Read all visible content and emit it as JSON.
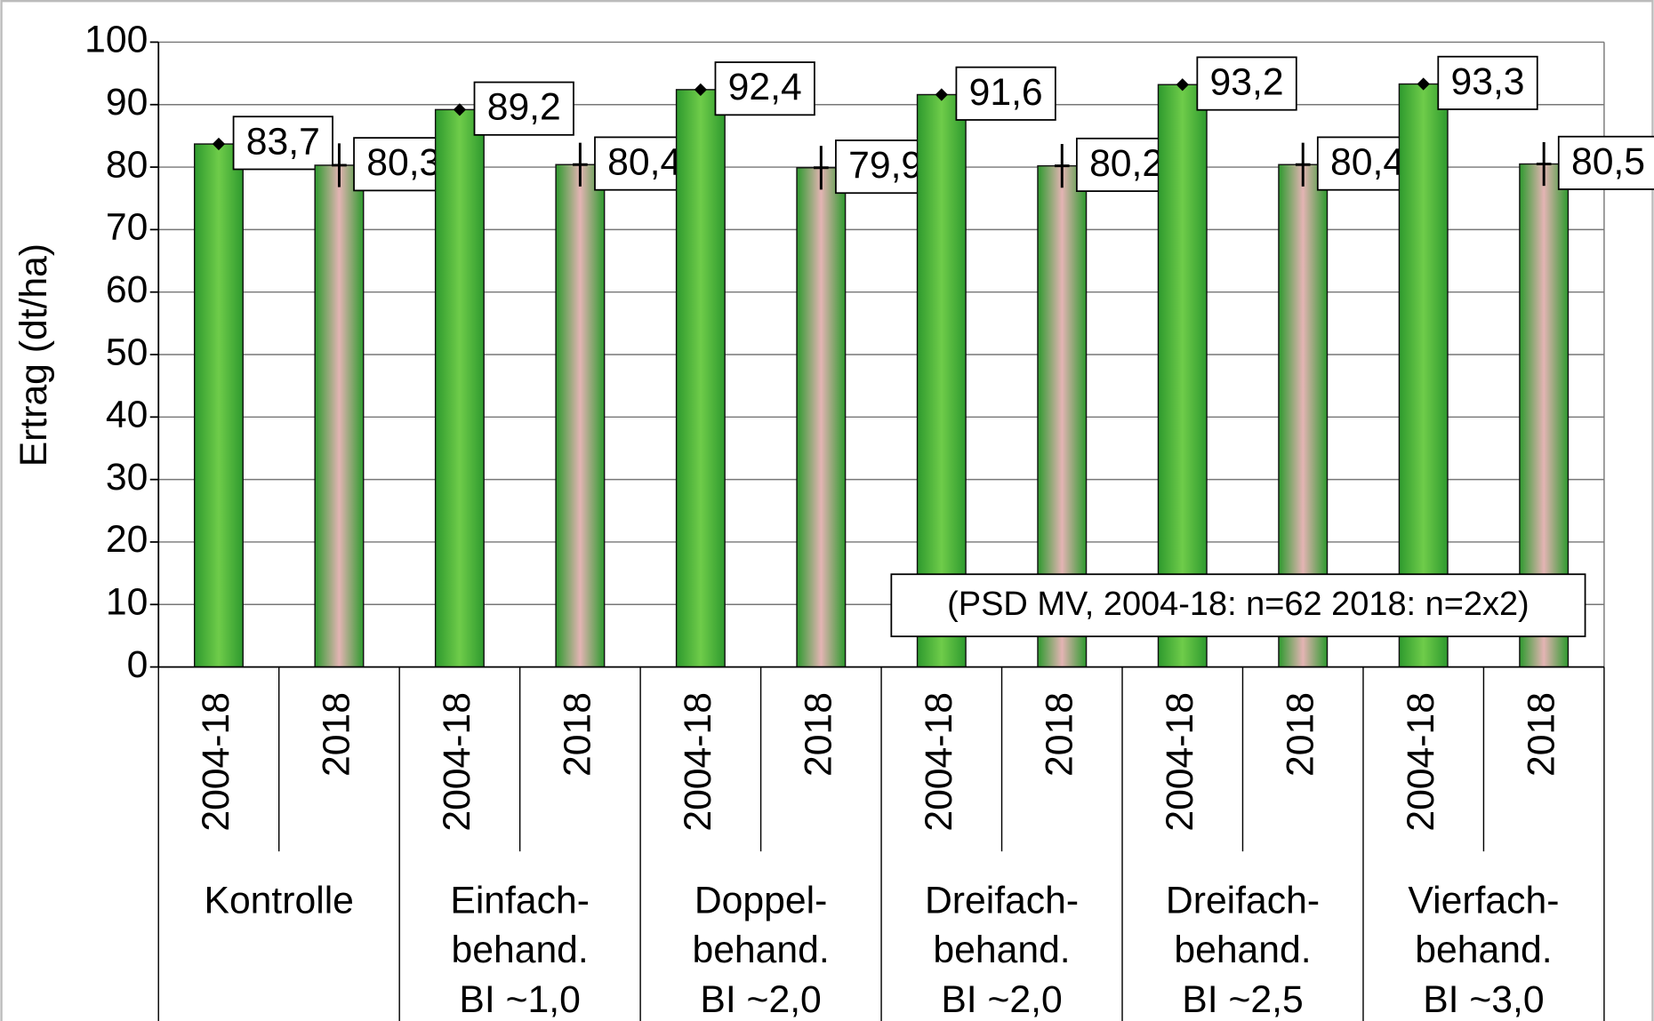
{
  "chart_data": {
    "type": "bar",
    "y_label": "Ertrag (dt/ha)",
    "categories": [
      "2004-18",
      "2018",
      "2004-18",
      "2018",
      "2004-18",
      "2018",
      "2004-18",
      "2018",
      "2004-18",
      "2018",
      "2004-18",
      "2018"
    ],
    "groups": [
      [
        "Kontrolle"
      ],
      [
        "Einfach-",
        "behand.",
        "BI ~1,0"
      ],
      [
        "Doppel-",
        "behand.",
        "BI ~2,0"
      ],
      [
        "Dreifach-",
        "behand.",
        "BI ~2,0"
      ],
      [
        "Dreifach-",
        "behand.",
        "BI ~2,5"
      ],
      [
        "Vierfach-",
        "behand.",
        "BI ~3,0"
      ]
    ],
    "values": [
      83.7,
      80.3,
      89.2,
      80.4,
      92.4,
      79.9,
      91.6,
      80.2,
      93.2,
      80.4,
      93.3,
      80.5
    ],
    "value_labels": [
      "83,7",
      "80,3",
      "89,2",
      "80,4",
      "92,4",
      "79,9",
      "91,6",
      "80,2",
      "93,2",
      "80,4",
      "93,3",
      "80,5"
    ],
    "errors": [
      null,
      3.5,
      null,
      3.5,
      null,
      3.5,
      null,
      3.5,
      null,
      3.5,
      null,
      3.5
    ],
    "colors": [
      "#6fcc4a",
      "#e4b4b4",
      "#6fcc4a",
      "#e4b4b4",
      "#6fcc4a",
      "#e4b4b4",
      "#6fcc4a",
      "#e4b4b4",
      "#6fcc4a",
      "#e4b4b4",
      "#6fcc4a",
      "#e4b4b4"
    ],
    "edge_color": "#2e9a2e",
    "annotation": "(PSD MV, 2004-18: n=62 2018: n=2x2)",
    "ylim": [
      0,
      100
    ],
    "yticks": [
      0,
      10,
      20,
      30,
      40,
      50,
      60,
      70,
      80,
      90,
      100
    ],
    "grid": true
  }
}
